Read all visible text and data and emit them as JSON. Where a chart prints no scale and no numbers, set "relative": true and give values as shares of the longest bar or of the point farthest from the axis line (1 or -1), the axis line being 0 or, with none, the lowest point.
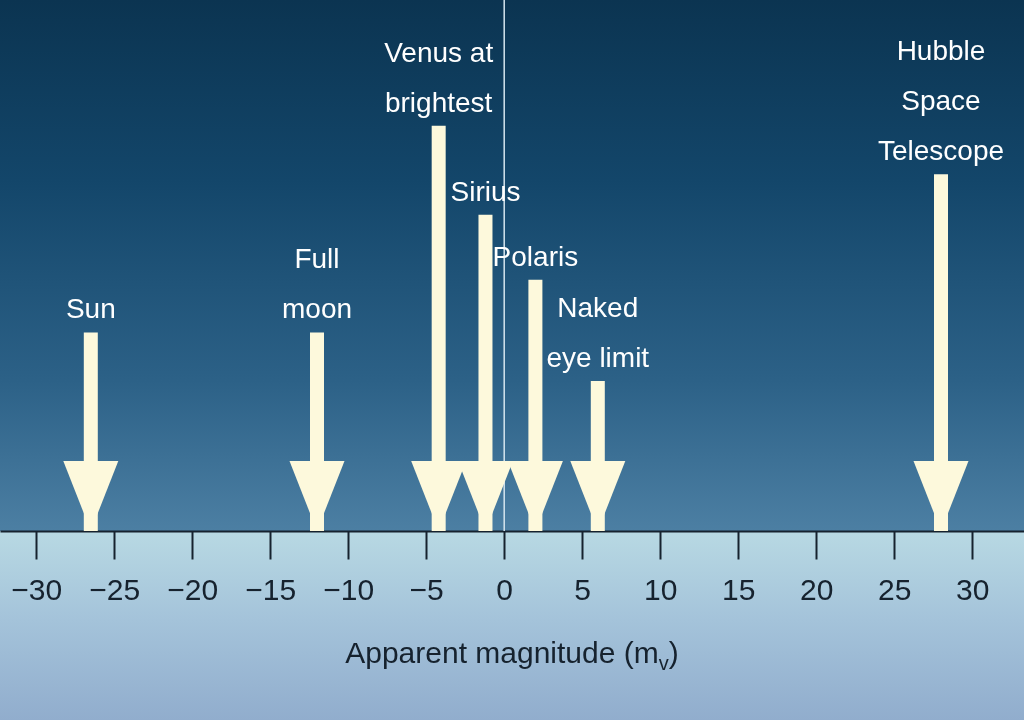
{
  "chart_data": {
    "type": "bar",
    "relative": true,
    "xlabel": "Apparent magnitude (m$_{v}$)",
    "x": [
      -26.5,
      -12,
      -4.2,
      -1.2,
      2,
      6,
      28
    ],
    "values": [
      0.49,
      0.49,
      1,
      0.78,
      0.62,
      0.37,
      0.88
    ],
    "color": "#fdf9dc",
    "xlim": [
      -32,
      33
    ],
    "xticks": [
      -30,
      -25,
      -20,
      -15,
      -10,
      -5,
      0,
      5,
      10,
      15,
      20,
      25,
      30
    ],
    "ref_lines": [
      {
        "axis": "x",
        "value": 0,
        "color": "#d5e5ef"
      }
    ],
    "annotations": [
      {
        "text": "Sun",
        "x": -26.5,
        "y": 0.49
      },
      {
        "text": "Full\nmoon",
        "x": -12,
        "y": 0.49
      },
      {
        "text": "Venus at\nbrightest",
        "x": -4.2,
        "y": 1
      },
      {
        "text": "Sirius",
        "x": -1.2,
        "y": 0.78
      },
      {
        "text": "Polaris",
        "x": 2,
        "y": 0.62
      },
      {
        "text": "Naked\neye limit",
        "x": 6,
        "y": 0.37
      },
      {
        "text": "Hubble\nSpace\nTelescope",
        "x": 28,
        "y": 0.88
      }
    ]
  }
}
